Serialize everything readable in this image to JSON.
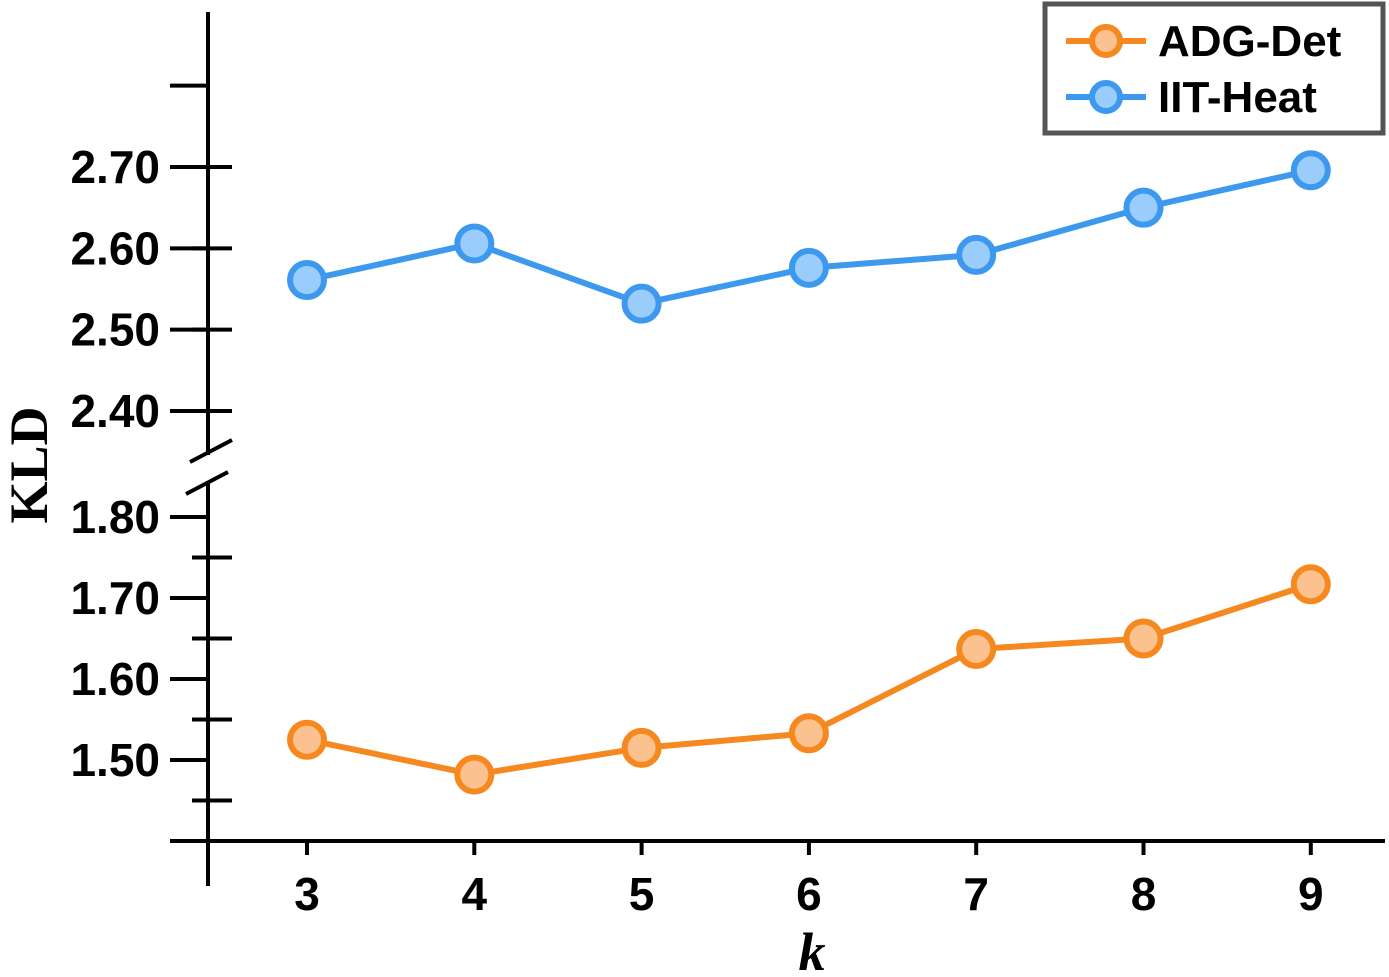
{
  "chart_data": {
    "type": "line",
    "xlabel": "k",
    "ylabel": "KLD",
    "x": [
      3,
      4,
      5,
      6,
      7,
      8,
      9
    ],
    "x_tick_labels": [
      "3",
      "4",
      "5",
      "6",
      "7",
      "8",
      "9"
    ],
    "y_axis_break": true,
    "y_segments": [
      {
        "range": [
          1.4,
          1.85
        ],
        "tick_labels": [
          "1.50",
          "1.60",
          "1.70",
          "1.80"
        ],
        "tick_values": [
          1.5,
          1.6,
          1.7,
          1.8
        ]
      },
      {
        "range": [
          2.35,
          2.8
        ],
        "tick_labels": [
          "2.40",
          "2.50",
          "2.60",
          "2.70"
        ],
        "tick_values": [
          2.4,
          2.5,
          2.6,
          2.7
        ]
      }
    ],
    "grid": false,
    "legend_position": "top-right",
    "series": [
      {
        "name": "ADG-Det",
        "values": [
          1.525,
          1.482,
          1.515,
          1.533,
          1.637,
          1.65,
          1.717
        ],
        "color": "#f5891f",
        "marker_fill": "#fbc290"
      },
      {
        "name": "IIT-Heat",
        "values": [
          2.561,
          2.606,
          2.532,
          2.576,
          2.592,
          2.65,
          2.696
        ],
        "color": "#3d99ee",
        "marker_fill": "#9acdfb"
      }
    ]
  }
}
